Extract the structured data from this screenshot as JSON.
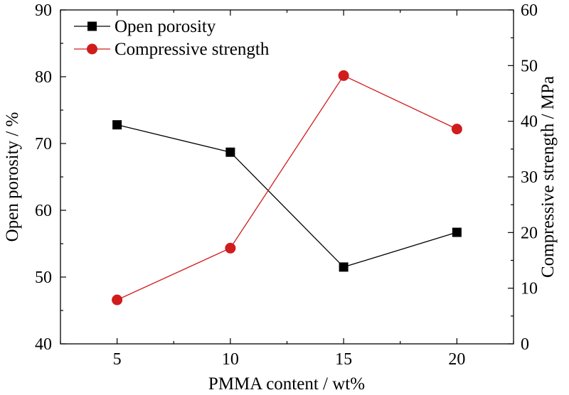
{
  "chart_data": {
    "type": "line",
    "x": [
      5,
      10,
      15,
      20
    ],
    "xticks": [
      5,
      10,
      15,
      20
    ],
    "xlim": [
      2.5,
      22.5
    ],
    "xlabel": "PMMA content / wt%",
    "ylabel_left": "Open porosity / %",
    "ylabel_right": "Compressive strength / MPa",
    "ylim_left": [
      40,
      90
    ],
    "yticks_left": [
      40,
      50,
      60,
      70,
      80,
      90
    ],
    "ylim_right": [
      0,
      60
    ],
    "yticks_right": [
      0,
      10,
      20,
      30,
      40,
      50,
      60
    ],
    "grid": false,
    "legend_position": "top-left",
    "series": [
      {
        "name": "Open porosity",
        "axis": "left",
        "marker": "square",
        "color": "#000000",
        "values": [
          72.8,
          68.7,
          51.5,
          56.7
        ]
      },
      {
        "name": "Compressive strength",
        "axis": "right",
        "marker": "circle",
        "color": "#d01c1c",
        "values": [
          7.9,
          17.2,
          48.2,
          38.6
        ]
      }
    ]
  }
}
